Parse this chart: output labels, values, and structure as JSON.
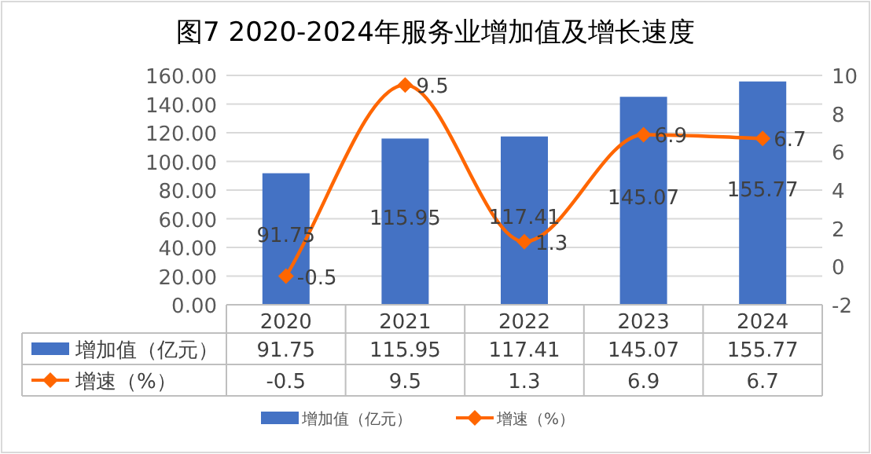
{
  "chart_data": {
    "type": "bar",
    "title": "图7  2020-2024年服务业增加值及增长速度",
    "categories": [
      "2020",
      "2021",
      "2022",
      "2023",
      "2024"
    ],
    "series": [
      {
        "name": "增加值（亿元）",
        "color": "#4472c4",
        "values": [
          91.75,
          115.95,
          117.41,
          145.07,
          155.77
        ]
      },
      {
        "name": "增速（%）",
        "type": "line",
        "axis": "y2",
        "color": "#ff6600",
        "marker": "diamond",
        "values": [
          -0.5,
          9.5,
          1.3,
          6.9,
          6.7
        ]
      }
    ],
    "ylim": [
      0,
      160
    ],
    "yticks": [
      {
        "value": 0,
        "label": "0.00"
      },
      {
        "value": 20,
        "label": "20.00"
      },
      {
        "value": 40,
        "label": "40.00"
      },
      {
        "value": 60,
        "label": "60.00"
      },
      {
        "value": 80,
        "label": "80.00"
      },
      {
        "value": 100,
        "label": "100.00"
      },
      {
        "value": 120,
        "label": "120.00"
      },
      {
        "value": 140,
        "label": "140.00"
      },
      {
        "value": 160,
        "label": "160.00"
      }
    ],
    "y2lim": [
      -2,
      10
    ],
    "y2ticks": [
      -2,
      0,
      2,
      4,
      6,
      8,
      10
    ],
    "annotations": [
      "91.75",
      "115.95",
      "117.41",
      "145.07",
      "155.77",
      "-0.5",
      "9.5",
      "1.3",
      "6.9",
      "6.7"
    ],
    "grid": "y",
    "data_labels": true,
    "legend": "bottom"
  }
}
